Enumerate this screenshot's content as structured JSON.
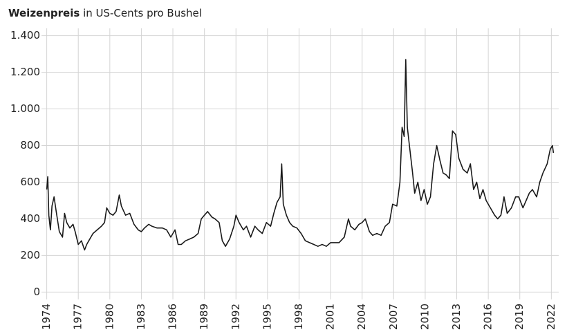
{
  "chart_data": {
    "type": "line",
    "title": "Weizenpreis",
    "subtitle": "in US-Cents pro Bushel",
    "x": [
      1974.0,
      1974.1,
      1974.2,
      1974.35,
      1974.5,
      1974.7,
      1974.9,
      1975.2,
      1975.5,
      1975.7,
      1975.9,
      1976.2,
      1976.5,
      1976.7,
      1977.0,
      1977.3,
      1977.6,
      1977.8,
      1978.0,
      1978.4,
      1978.8,
      1979.2,
      1979.5,
      1979.7,
      1980.0,
      1980.3,
      1980.6,
      1980.9,
      1981.1,
      1981.5,
      1981.9,
      1982.3,
      1982.7,
      1983.0,
      1983.3,
      1983.7,
      1984.0,
      1984.5,
      1985.0,
      1985.4,
      1985.8,
      1986.2,
      1986.5,
      1986.8,
      1987.2,
      1987.6,
      1988.0,
      1988.4,
      1988.7,
      1989.0,
      1989.3,
      1989.7,
      1990.0,
      1990.4,
      1990.7,
      1991.0,
      1991.4,
      1991.8,
      1992.0,
      1992.3,
      1992.7,
      1993.0,
      1993.4,
      1993.8,
      1994.1,
      1994.5,
      1994.9,
      1995.3,
      1995.6,
      1995.9,
      1996.2,
      1996.35,
      1996.5,
      1996.8,
      1997.1,
      1997.4,
      1997.8,
      1998.2,
      1998.6,
      1999.0,
      1999.4,
      1999.8,
      2000.2,
      2000.6,
      2001.0,
      2001.4,
      2001.8,
      2002.3,
      2002.7,
      2002.9,
      2003.3,
      2003.7,
      2004.0,
      2004.3,
      2004.7,
      2005.0,
      2005.4,
      2005.8,
      2006.2,
      2006.6,
      2006.9,
      2007.3,
      2007.6,
      2007.8,
      2008.0,
      2008.15,
      2008.3,
      2008.5,
      2008.8,
      2009.0,
      2009.3,
      2009.6,
      2009.9,
      2010.2,
      2010.5,
      2010.8,
      2011.1,
      2011.4,
      2011.7,
      2012.0,
      2012.3,
      2012.6,
      2012.9,
      2013.2,
      2013.6,
      2014.0,
      2014.3,
      2014.6,
      2014.9,
      2015.2,
      2015.5,
      2015.8,
      2016.2,
      2016.6,
      2016.9,
      2017.2,
      2017.5,
      2017.8,
      2018.2,
      2018.6,
      2018.9,
      2019.3,
      2019.6,
      2019.9,
      2020.2,
      2020.6,
      2020.9,
      2021.2,
      2021.6,
      2021.9,
      2022.1,
      2022.2
    ],
    "values": [
      560,
      630,
      420,
      340,
      470,
      520,
      440,
      330,
      300,
      430,
      380,
      350,
      370,
      330,
      260,
      280,
      230,
      260,
      280,
      320,
      340,
      360,
      380,
      460,
      430,
      420,
      440,
      530,
      470,
      420,
      430,
      370,
      340,
      330,
      350,
      370,
      360,
      350,
      350,
      340,
      300,
      340,
      260,
      260,
      280,
      290,
      300,
      320,
      400,
      420,
      440,
      410,
      400,
      380,
      280,
      250,
      290,
      360,
      420,
      380,
      340,
      360,
      300,
      360,
      340,
      320,
      380,
      360,
      430,
      490,
      520,
      700,
      480,
      420,
      380,
      360,
      350,
      320,
      280,
      270,
      260,
      250,
      260,
      250,
      270,
      270,
      270,
      300,
      400,
      360,
      340,
      370,
      380,
      400,
      330,
      310,
      320,
      310,
      360,
      380,
      480,
      470,
      600,
      900,
      850,
      1270,
      900,
      800,
      650,
      540,
      600,
      500,
      560,
      480,
      520,
      700,
      800,
      720,
      650,
      640,
      620,
      880,
      860,
      730,
      670,
      650,
      700,
      560,
      600,
      510,
      560,
      500,
      460,
      420,
      400,
      420,
      520,
      430,
      460,
      520,
      520,
      460,
      500,
      540,
      560,
      520,
      600,
      650,
      700,
      780,
      800,
      760
    ],
    "color": "#1a1a1a",
    "xlim": [
      1973.5,
      2022.7
    ],
    "xticks": [
      1974,
      1977,
      1980,
      1983,
      1986,
      1989,
      1992,
      1995,
      1998,
      2001,
      2004,
      2007,
      2010,
      2013,
      2016,
      2019,
      2022
    ],
    "ylim": [
      -40,
      1440
    ],
    "yticks": [
      0,
      200,
      400,
      600,
      800,
      {
        "value": 1000,
        "label": "1.000"
      },
      {
        "value": 1200,
        "label": "1.200"
      },
      {
        "value": 1400,
        "label": "1.400"
      }
    ],
    "grid": true
  }
}
